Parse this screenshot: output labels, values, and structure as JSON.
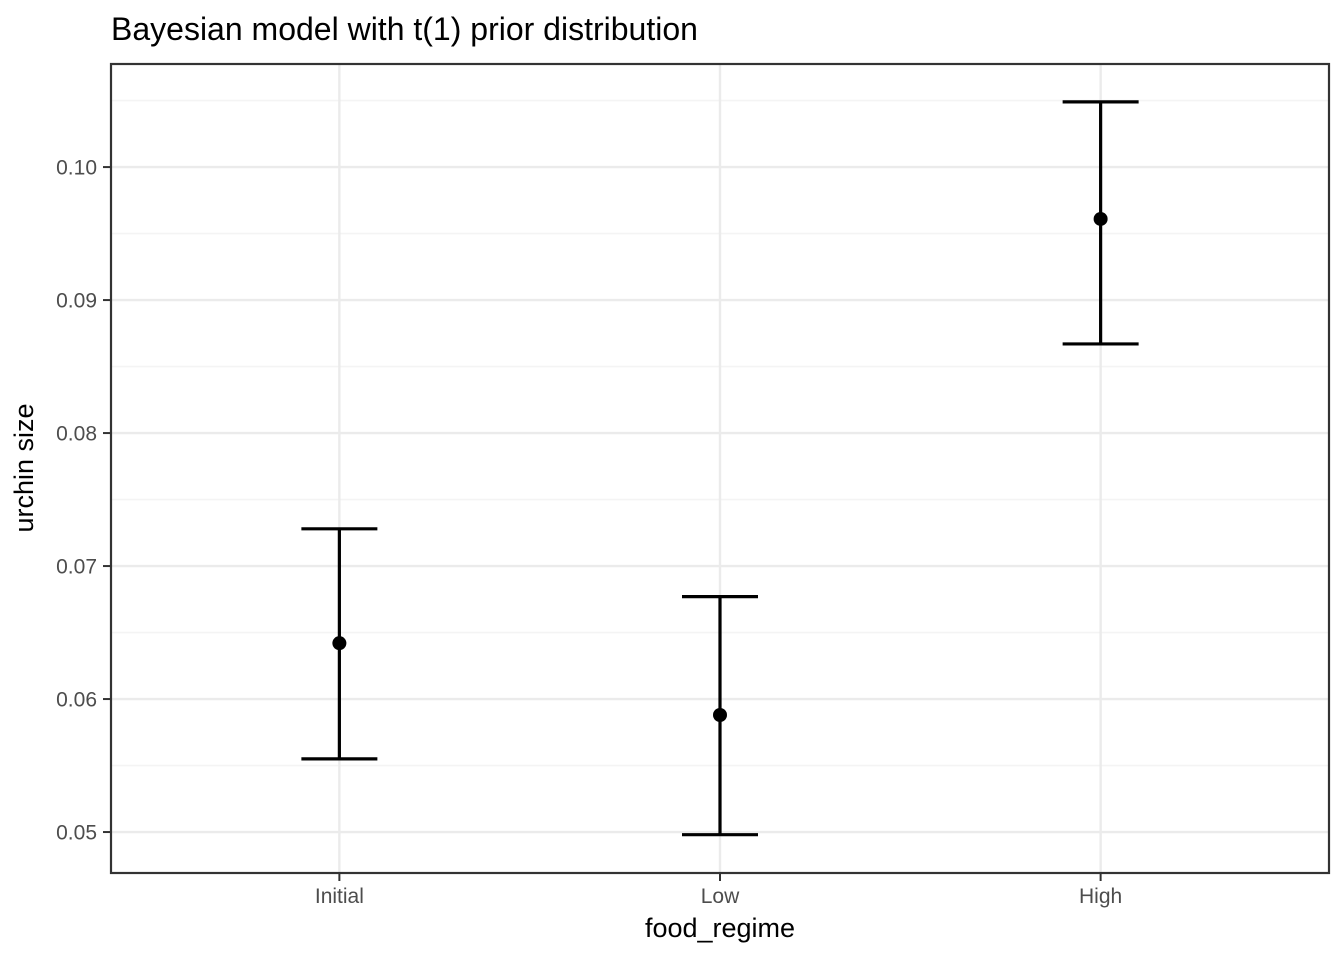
{
  "figure": {
    "background": "#FFFFFF"
  },
  "chart_data": {
    "type": "pointrange",
    "title": "Bayesian model with t(1) prior distribution",
    "xlabel": "food_regime",
    "ylabel": "urchin size",
    "categories": [
      "Initial",
      "Low",
      "High"
    ],
    "series": [
      {
        "category": "Initial",
        "mean": 0.0642,
        "lower": 0.0555,
        "upper": 0.0728
      },
      {
        "category": "Low",
        "mean": 0.0588,
        "lower": 0.0498,
        "upper": 0.0677
      },
      {
        "category": "High",
        "mean": 0.0961,
        "lower": 0.0867,
        "upper": 0.1049
      }
    ],
    "y_ticks": [
      {
        "value": 0.05,
        "label": "0.05"
      },
      {
        "value": 0.06,
        "label": "0.06"
      },
      {
        "value": 0.07,
        "label": "0.07"
      },
      {
        "value": 0.08,
        "label": "0.08"
      },
      {
        "value": 0.09,
        "label": "0.09"
      },
      {
        "value": 0.1,
        "label": "0.10"
      }
    ],
    "y_minor_ticks": [
      0.055,
      0.065,
      0.075,
      0.085,
      0.095,
      0.105
    ],
    "ylim": [
      0.04692,
      0.10775
    ],
    "grid": true,
    "legend": "none",
    "theme": {
      "panel_background": "#FFFFFF",
      "panel_border": "#333333",
      "grid_major": "#EBEBEB",
      "grid_minor": "#F4F4F4",
      "tick_color": "#333333",
      "tick_label_color": "#4D4D4D",
      "axis_title_color": "#000000",
      "title_color": "#000000",
      "data_color": "#000000"
    }
  }
}
